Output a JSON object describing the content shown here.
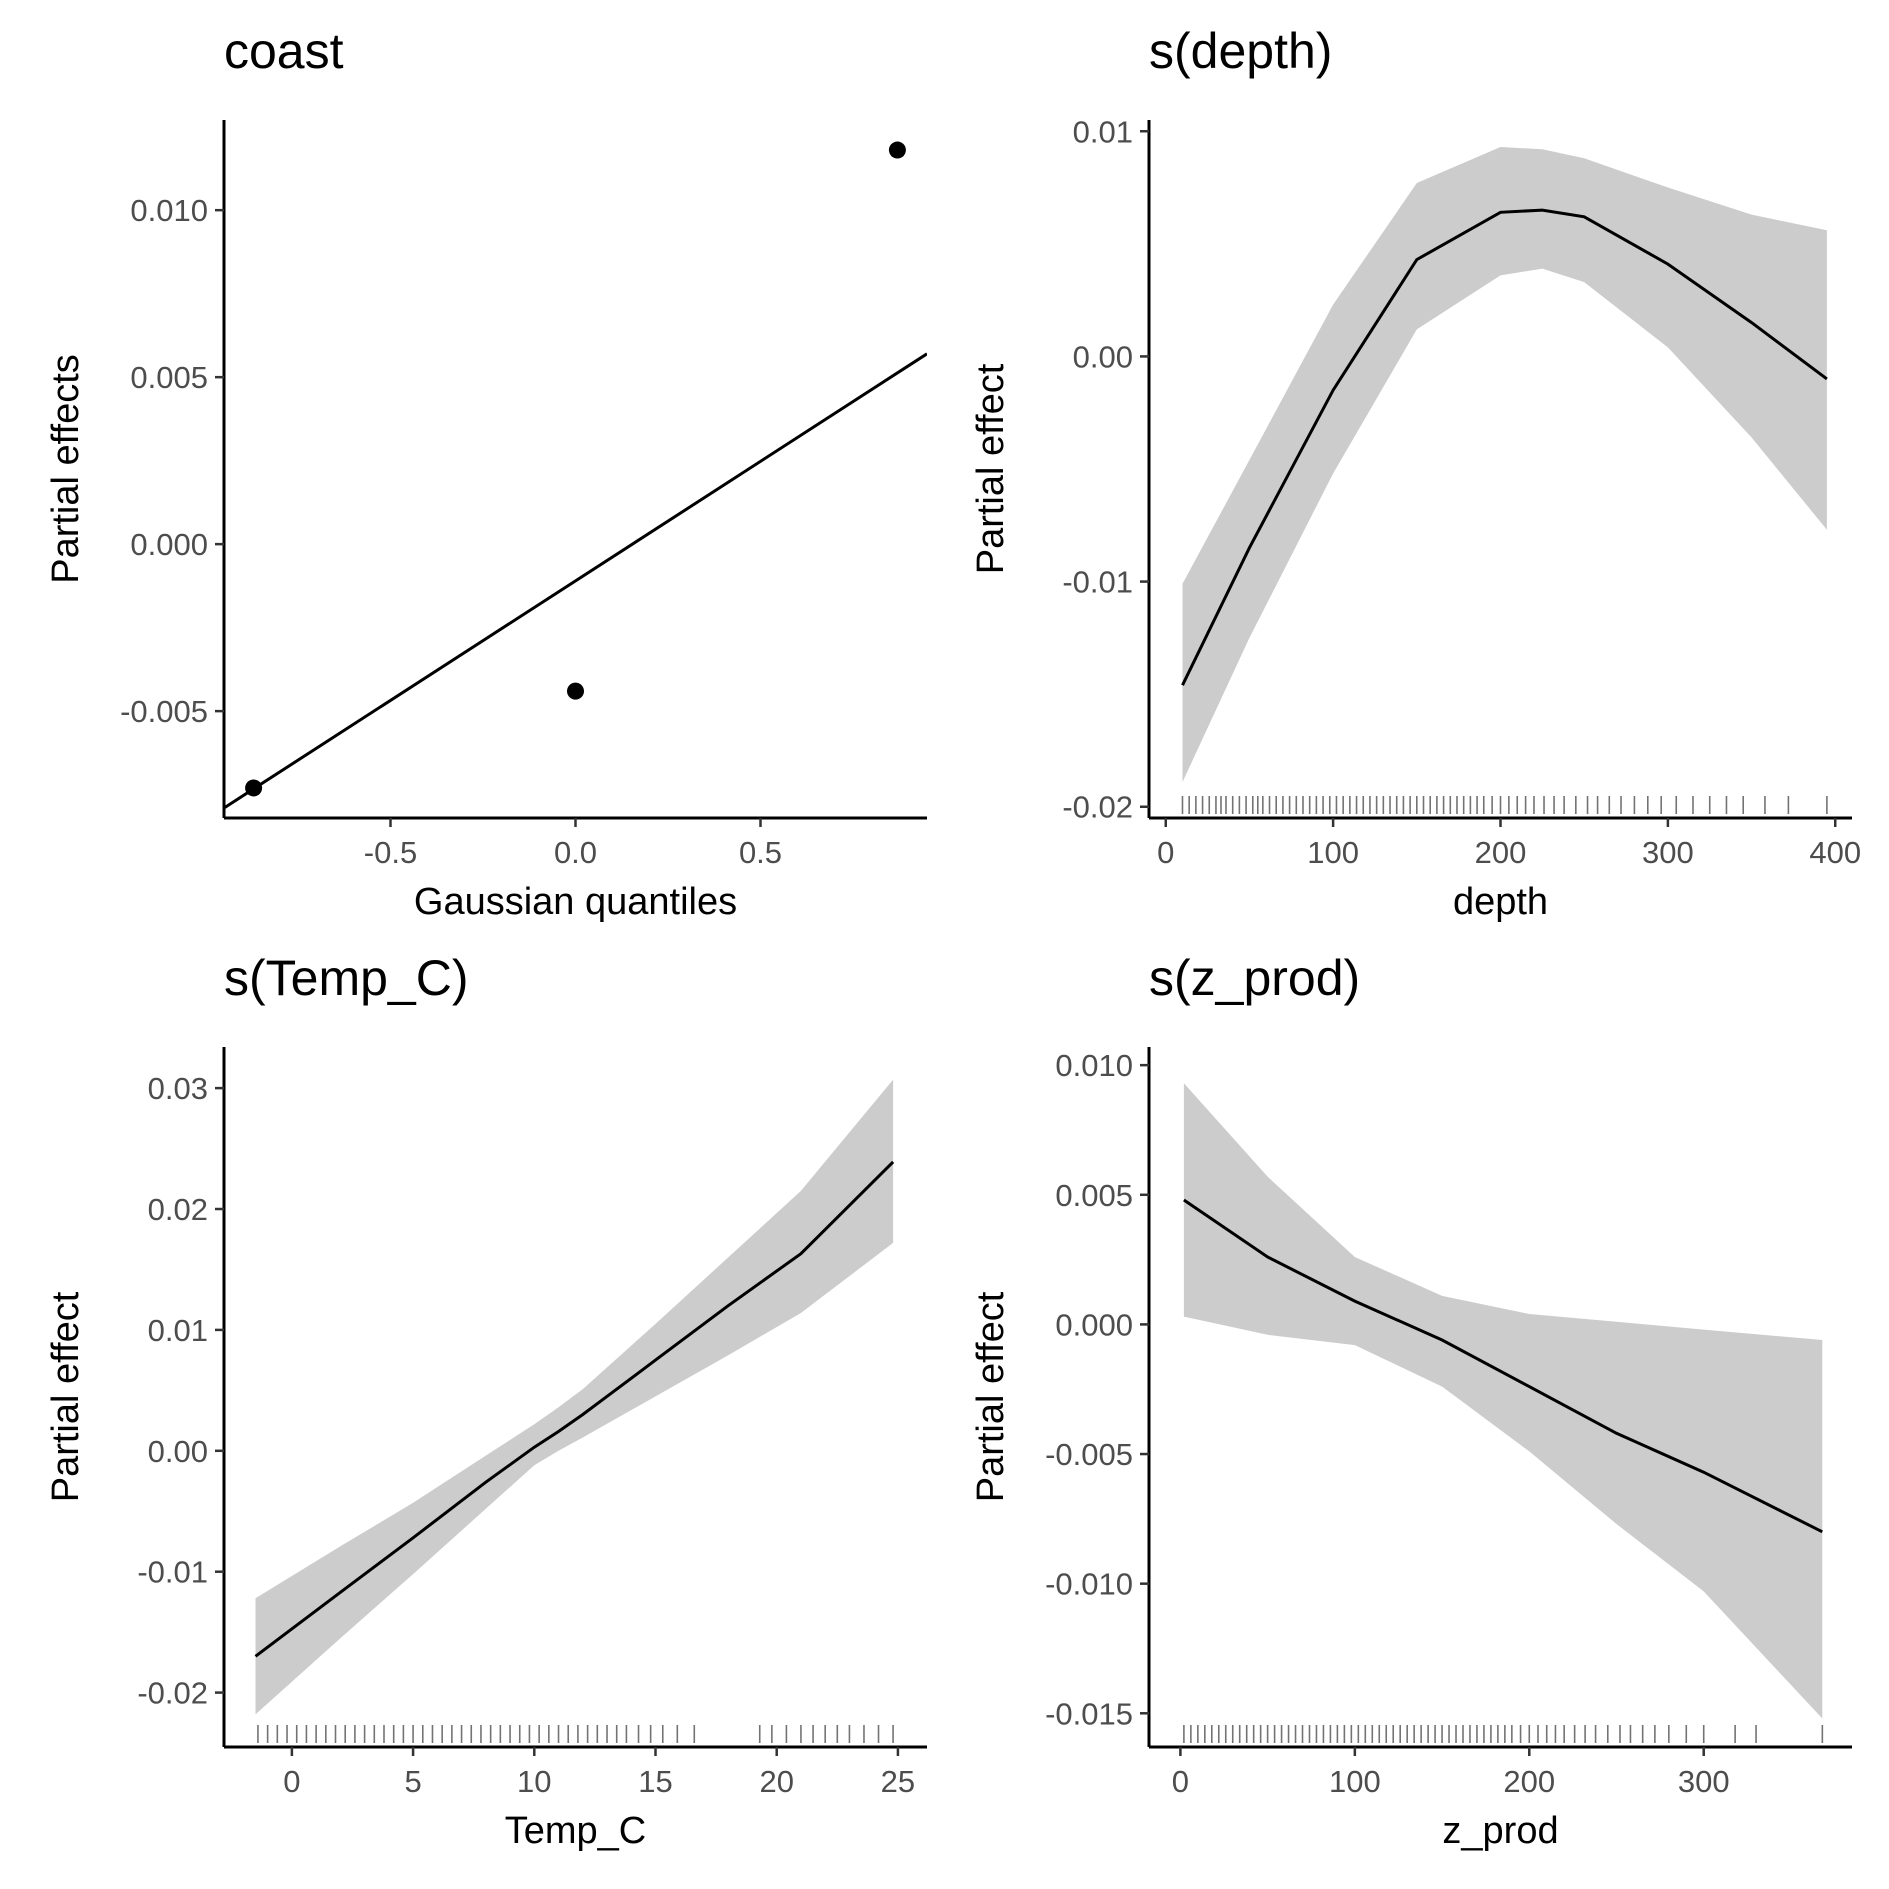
{
  "chart_data": [
    {
      "type": "scatter",
      "title": "coast",
      "xlabel": "Gaussian quantiles",
      "ylabel": "Partial effects",
      "xlim": [
        -0.95,
        0.95
      ],
      "ylim": [
        -0.0082,
        0.0127
      ],
      "xticks": [
        -0.5,
        0.0,
        0.5
      ],
      "xtick_labels": [
        "-0.5",
        "0.0",
        "0.5"
      ],
      "yticks": [
        -0.005,
        0.0,
        0.005,
        0.01
      ],
      "ytick_labels": [
        "-0.005",
        "0.000",
        "0.005",
        "0.010"
      ],
      "points": [
        {
          "x": -0.87,
          "y": -0.0073
        },
        {
          "x": 0.0,
          "y": -0.0044
        },
        {
          "x": 0.87,
          "y": 0.0118
        }
      ],
      "reference_line": {
        "x": [
          -0.95,
          0.95
        ],
        "y": [
          -0.0079,
          0.0057
        ]
      }
    },
    {
      "type": "line",
      "title": "s(depth)",
      "xlabel": "depth",
      "ylabel": "Partial effect",
      "xlim": [
        -10,
        410
      ],
      "ylim": [
        -0.0205,
        0.0105
      ],
      "xticks": [
        0,
        100,
        200,
        300,
        400
      ],
      "xtick_labels": [
        "0",
        "100",
        "200",
        "300",
        "400"
      ],
      "yticks": [
        -0.02,
        -0.01,
        0.0,
        0.01
      ],
      "ytick_labels": [
        "-0.02",
        "-0.01",
        "0.00",
        "0.01"
      ],
      "x": [
        10,
        50,
        100,
        150,
        200,
        225,
        250,
        300,
        350,
        395
      ],
      "y": [
        -0.0146,
        -0.0085,
        -0.0015,
        0.0043,
        0.0064,
        0.0065,
        0.0062,
        0.0041,
        0.0015,
        -0.001
      ],
      "lower": [
        -0.0189,
        -0.0125,
        -0.0052,
        0.0012,
        0.0036,
        0.0039,
        0.0033,
        0.0004,
        -0.0036,
        -0.0077
      ],
      "upper": [
        -0.0101,
        -0.0046,
        0.0023,
        0.0077,
        0.0093,
        0.0092,
        0.0088,
        0.0075,
        0.0063,
        0.0056
      ],
      "rug": [
        10,
        14,
        18,
        22,
        26,
        30,
        33,
        36,
        40,
        44,
        48,
        52,
        55,
        58,
        62,
        66,
        70,
        74,
        78,
        82,
        86,
        90,
        94,
        98,
        102,
        106,
        110,
        114,
        118,
        122,
        126,
        130,
        134,
        138,
        142,
        146,
        150,
        154,
        158,
        162,
        166,
        170,
        174,
        178,
        182,
        186,
        190,
        195,
        200,
        205,
        210,
        215,
        220,
        226,
        232,
        238,
        245,
        252,
        258,
        265,
        272,
        280,
        288,
        296,
        305,
        315,
        325,
        335,
        345,
        358,
        372,
        395
      ]
    },
    {
      "type": "line",
      "title": "s(Temp_C)",
      "xlabel": "Temp_C",
      "ylabel": "Partial effect",
      "xlim": [
        -2.8,
        26.2
      ],
      "ylim": [
        -0.0245,
        0.0334
      ],
      "xticks": [
        0,
        5,
        10,
        15,
        20,
        25
      ],
      "xtick_labels": [
        "0",
        "5",
        "10",
        "15",
        "20",
        "25"
      ],
      "yticks": [
        -0.02,
        -0.01,
        0.0,
        0.01,
        0.02,
        0.03
      ],
      "ytick_labels": [
        "-0.02",
        "-0.01",
        "0.00",
        "0.01",
        "0.02",
        "0.03"
      ],
      "x": [
        -1.5,
        2,
        5,
        8,
        10,
        11,
        12,
        15,
        18,
        21,
        24.8
      ],
      "y": [
        -0.017,
        -0.0117,
        -0.0072,
        -0.0026,
        0.0003,
        0.0016,
        0.003,
        0.0075,
        0.012,
        0.0163,
        0.0239
      ],
      "lower": [
        -0.0218,
        -0.0155,
        -0.0102,
        -0.0048,
        -0.0012,
        0.0,
        0.0011,
        0.0045,
        0.0079,
        0.0114,
        0.0172
      ],
      "upper": [
        -0.0122,
        -0.0079,
        -0.0043,
        -0.0004,
        0.0022,
        0.0036,
        0.0051,
        0.0105,
        0.016,
        0.0215,
        0.0307
      ],
      "rug": [
        -1.4,
        -1.0,
        -0.6,
        -0.2,
        0.2,
        0.6,
        1.0,
        1.4,
        1.8,
        2.2,
        2.6,
        3.0,
        3.4,
        3.8,
        4.2,
        4.6,
        5.0,
        5.4,
        5.8,
        6.2,
        6.6,
        7.0,
        7.4,
        7.8,
        8.2,
        8.6,
        9.0,
        9.4,
        9.8,
        10.2,
        10.6,
        11.0,
        11.4,
        11.8,
        12.2,
        12.6,
        13.0,
        13.4,
        13.8,
        14.3,
        14.8,
        15.3,
        15.9,
        16.6,
        19.3,
        19.8,
        20.4,
        21.0,
        21.5,
        22.0,
        22.5,
        23.0,
        23.6,
        24.2,
        24.8
      ]
    },
    {
      "type": "line",
      "title": "s(z_prod)",
      "xlabel": "z_prod",
      "ylabel": "Partial effect",
      "xlim": [
        -18,
        385
      ],
      "ylim": [
        -0.0163,
        0.0107
      ],
      "xticks": [
        0,
        100,
        200,
        300
      ],
      "xtick_labels": [
        "0",
        "100",
        "200",
        "300"
      ],
      "yticks": [
        -0.015,
        -0.01,
        -0.005,
        0.0,
        0.005,
        0.01
      ],
      "ytick_labels": [
        "-0.015",
        "-0.010",
        "-0.005",
        "0.000",
        "0.005",
        "0.010"
      ],
      "x": [
        2,
        50,
        100,
        150,
        200,
        250,
        300,
        368
      ],
      "y": [
        0.0048,
        0.0026,
        0.0009,
        -0.0006,
        -0.0024,
        -0.0042,
        -0.0057,
        -0.008
      ],
      "lower": [
        0.0003,
        -0.0004,
        -0.0008,
        -0.0024,
        -0.0049,
        -0.0077,
        -0.0103,
        -0.0152
      ],
      "upper": [
        0.0093,
        0.0057,
        0.0026,
        0.0011,
        0.0004,
        0.0001,
        -0.0002,
        -0.0006
      ],
      "rug": [
        2,
        6,
        10,
        14,
        18,
        22,
        26,
        30,
        34,
        38,
        42,
        46,
        50,
        54,
        58,
        62,
        66,
        70,
        74,
        78,
        82,
        86,
        90,
        94,
        98,
        102,
        106,
        110,
        114,
        118,
        122,
        126,
        130,
        134,
        138,
        142,
        146,
        150,
        154,
        158,
        162,
        166,
        170,
        174,
        178,
        182,
        186,
        190,
        195,
        200,
        205,
        210,
        215,
        220,
        226,
        232,
        238,
        245,
        252,
        258,
        265,
        272,
        280,
        290,
        300,
        318,
        330,
        368
      ]
    }
  ]
}
